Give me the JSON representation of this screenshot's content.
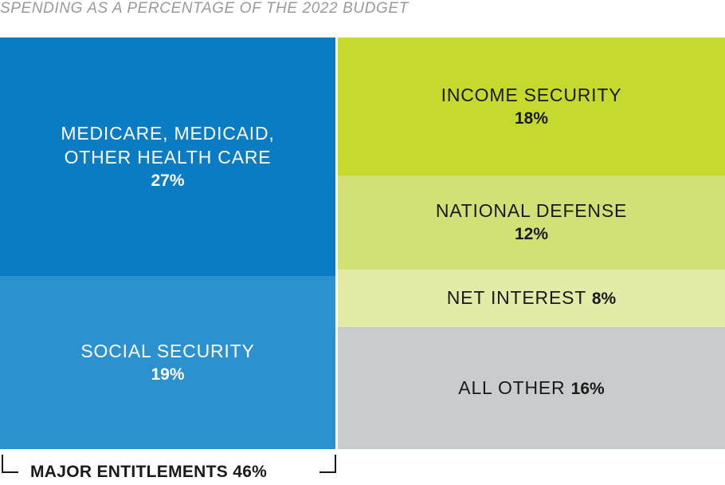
{
  "chart_data": {
    "type": "treemap",
    "title": "SPENDING AS A PERCENTAGE OF THE 2022 BUDGET",
    "categories": [
      {
        "label_lines": [
          "MEDICARE, MEDICAID,",
          "OTHER HEALTH CARE"
        ],
        "value": 27,
        "value_label": "27%",
        "color": "#0a7cc3",
        "group": "MAJOR ENTITLEMENTS"
      },
      {
        "label_lines": [
          "SOCIAL SECURITY"
        ],
        "value": 19,
        "value_label": "19%",
        "color": "#2b92cf",
        "group": "MAJOR ENTITLEMENTS"
      },
      {
        "label_lines": [
          "INCOME SECURITY"
        ],
        "value": 18,
        "value_label": "18%",
        "color": "#c6d92d"
      },
      {
        "label_lines": [
          "NATIONAL DEFENSE"
        ],
        "value": 12,
        "value_label": "12%",
        "color": "#d3e075"
      },
      {
        "label_lines": [
          "NET INTEREST"
        ],
        "value": 8,
        "value_label": "8%",
        "color": "#e3eba7"
      },
      {
        "label_lines": [
          "ALL OTHER"
        ],
        "value": 16,
        "value_label": "16%",
        "color": "#c9cccd"
      }
    ],
    "group_annotation": {
      "label": "MAJOR ENTITLEMENTS",
      "value": 46,
      "value_label": "46%"
    }
  }
}
